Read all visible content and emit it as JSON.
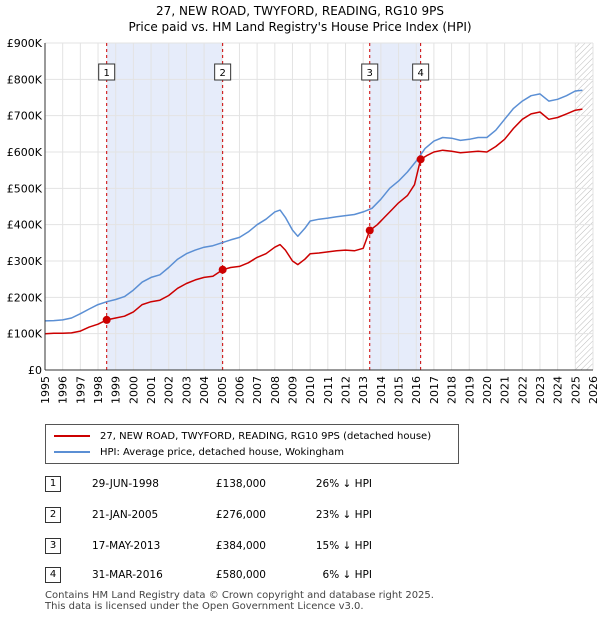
{
  "title": {
    "line1": "27, NEW ROAD, TWYFORD, READING, RG10 9PS",
    "line2": "Price paid vs. HM Land Registry's House Price Index (HPI)"
  },
  "colors": {
    "property": "#cc0000",
    "hpi": "#5b8fd4",
    "shade": "#e6ecfa",
    "marker_line": "#cc0000"
  },
  "legend": {
    "property_label": "27, NEW ROAD, TWYFORD, READING, RG10 9PS (detached house)",
    "hpi_label": "HPI: Average price, detached house, Wokingham"
  },
  "sales": [
    {
      "num": "1",
      "date": "29-JUN-1998",
      "price": "£138,000",
      "hpi": "26% ↓ HPI"
    },
    {
      "num": "2",
      "date": "21-JAN-2005",
      "price": "£276,000",
      "hpi": "23% ↓ HPI"
    },
    {
      "num": "3",
      "date": "17-MAY-2013",
      "price": "£384,000",
      "hpi": "15% ↓ HPI"
    },
    {
      "num": "4",
      "date": "31-MAR-2016",
      "price": "£580,000",
      "hpi": "6% ↓ HPI"
    }
  ],
  "footer": {
    "line1": "Contains HM Land Registry data © Crown copyright and database right 2025.",
    "line2": "This data is licensed under the Open Government Licence v3.0."
  },
  "chart_data": {
    "type": "line",
    "title": "Price paid vs. HM Land Registry's House Price Index (HPI)",
    "xlabel": "",
    "ylabel": "",
    "xlim": [
      1995,
      2026
    ],
    "ylim": [
      0,
      900000
    ],
    "x_ticks": [
      1995,
      1996,
      1997,
      1998,
      1999,
      2000,
      2001,
      2002,
      2003,
      2004,
      2005,
      2006,
      2007,
      2008,
      2009,
      2010,
      2011,
      2012,
      2013,
      2014,
      2015,
      2016,
      2017,
      2018,
      2019,
      2020,
      2021,
      2022,
      2023,
      2024,
      2025,
      2026
    ],
    "y_ticks": [
      {
        "value": 0,
        "label": "£0"
      },
      {
        "value": 100000,
        "label": "£100K"
      },
      {
        "value": 200000,
        "label": "£200K"
      },
      {
        "value": 300000,
        "label": "£300K"
      },
      {
        "value": 400000,
        "label": "£400K"
      },
      {
        "value": 500000,
        "label": "£500K"
      },
      {
        "value": 600000,
        "label": "£600K"
      },
      {
        "value": 700000,
        "label": "£700K"
      },
      {
        "value": 800000,
        "label": "£800K"
      },
      {
        "value": 900000,
        "label": "£900K"
      }
    ],
    "shaded_ranges": [
      [
        1998.49,
        2005.05
      ],
      [
        2013.37,
        2016.25
      ]
    ],
    "future_hatch_from": 2025.0,
    "sale_markers": [
      {
        "label": "1",
        "x": 1998.49,
        "y": 138000
      },
      {
        "label": "2",
        "x": 2005.05,
        "y": 276000
      },
      {
        "label": "3",
        "x": 2013.37,
        "y": 384000
      },
      {
        "label": "4",
        "x": 2016.25,
        "y": 580000
      }
    ],
    "series": [
      {
        "name": "27, NEW ROAD, TWYFORD, READING, RG10 9PS (detached house)",
        "color": "#cc0000",
        "points": [
          [
            1995.0,
            100000
          ],
          [
            1995.5,
            101000
          ],
          [
            1996.0,
            101000
          ],
          [
            1996.5,
            102000
          ],
          [
            1997.0,
            107000
          ],
          [
            1997.5,
            118000
          ],
          [
            1998.0,
            126000
          ],
          [
            1998.49,
            138000
          ],
          [
            1999.0,
            143000
          ],
          [
            1999.5,
            148000
          ],
          [
            2000.0,
            160000
          ],
          [
            2000.5,
            180000
          ],
          [
            2001.0,
            188000
          ],
          [
            2001.5,
            192000
          ],
          [
            2002.0,
            205000
          ],
          [
            2002.5,
            225000
          ],
          [
            2003.0,
            238000
          ],
          [
            2003.5,
            248000
          ],
          [
            2004.0,
            255000
          ],
          [
            2004.5,
            258000
          ],
          [
            2005.05,
            276000
          ],
          [
            2005.5,
            282000
          ],
          [
            2006.0,
            285000
          ],
          [
            2006.5,
            295000
          ],
          [
            2007.0,
            310000
          ],
          [
            2007.5,
            320000
          ],
          [
            2008.0,
            338000
          ],
          [
            2008.3,
            345000
          ],
          [
            2008.6,
            330000
          ],
          [
            2009.0,
            300000
          ],
          [
            2009.3,
            290000
          ],
          [
            2009.7,
            305000
          ],
          [
            2010.0,
            320000
          ],
          [
            2010.5,
            322000
          ],
          [
            2011.0,
            325000
          ],
          [
            2011.5,
            328000
          ],
          [
            2012.0,
            330000
          ],
          [
            2012.5,
            328000
          ],
          [
            2013.0,
            335000
          ],
          [
            2013.37,
            384000
          ],
          [
            2013.8,
            400000
          ],
          [
            2014.2,
            420000
          ],
          [
            2014.6,
            440000
          ],
          [
            2015.0,
            460000
          ],
          [
            2015.5,
            480000
          ],
          [
            2015.9,
            510000
          ],
          [
            2016.25,
            580000
          ],
          [
            2016.6,
            590000
          ],
          [
            2017.0,
            600000
          ],
          [
            2017.5,
            605000
          ],
          [
            2018.0,
            602000
          ],
          [
            2018.5,
            598000
          ],
          [
            2019.0,
            600000
          ],
          [
            2019.5,
            602000
          ],
          [
            2020.0,
            600000
          ],
          [
            2020.5,
            615000
          ],
          [
            2021.0,
            635000
          ],
          [
            2021.5,
            665000
          ],
          [
            2022.0,
            690000
          ],
          [
            2022.5,
            705000
          ],
          [
            2023.0,
            710000
          ],
          [
            2023.5,
            690000
          ],
          [
            2024.0,
            695000
          ],
          [
            2024.5,
            705000
          ],
          [
            2025.0,
            715000
          ],
          [
            2025.4,
            718000
          ]
        ]
      },
      {
        "name": "HPI: Average price, detached house, Wokingham",
        "color": "#5b8fd4",
        "points": [
          [
            1995.0,
            135000
          ],
          [
            1995.5,
            136000
          ],
          [
            1996.0,
            138000
          ],
          [
            1996.5,
            143000
          ],
          [
            1997.0,
            155000
          ],
          [
            1997.5,
            168000
          ],
          [
            1998.0,
            180000
          ],
          [
            1998.5,
            188000
          ],
          [
            1999.0,
            194000
          ],
          [
            1999.5,
            202000
          ],
          [
            2000.0,
            220000
          ],
          [
            2000.5,
            242000
          ],
          [
            2001.0,
            255000
          ],
          [
            2001.5,
            262000
          ],
          [
            2002.0,
            282000
          ],
          [
            2002.5,
            305000
          ],
          [
            2003.0,
            320000
          ],
          [
            2003.5,
            330000
          ],
          [
            2004.0,
            338000
          ],
          [
            2004.5,
            342000
          ],
          [
            2005.0,
            350000
          ],
          [
            2005.5,
            358000
          ],
          [
            2006.0,
            365000
          ],
          [
            2006.5,
            380000
          ],
          [
            2007.0,
            400000
          ],
          [
            2007.5,
            415000
          ],
          [
            2008.0,
            435000
          ],
          [
            2008.3,
            440000
          ],
          [
            2008.6,
            420000
          ],
          [
            2009.0,
            385000
          ],
          [
            2009.3,
            368000
          ],
          [
            2009.7,
            390000
          ],
          [
            2010.0,
            410000
          ],
          [
            2010.5,
            415000
          ],
          [
            2011.0,
            418000
          ],
          [
            2011.5,
            422000
          ],
          [
            2012.0,
            425000
          ],
          [
            2012.5,
            428000
          ],
          [
            2013.0,
            435000
          ],
          [
            2013.5,
            445000
          ],
          [
            2014.0,
            470000
          ],
          [
            2014.5,
            500000
          ],
          [
            2015.0,
            520000
          ],
          [
            2015.5,
            545000
          ],
          [
            2016.0,
            575000
          ],
          [
            2016.5,
            610000
          ],
          [
            2017.0,
            630000
          ],
          [
            2017.5,
            640000
          ],
          [
            2018.0,
            638000
          ],
          [
            2018.5,
            632000
          ],
          [
            2019.0,
            635000
          ],
          [
            2019.5,
            640000
          ],
          [
            2020.0,
            640000
          ],
          [
            2020.5,
            660000
          ],
          [
            2021.0,
            690000
          ],
          [
            2021.5,
            720000
          ],
          [
            2022.0,
            740000
          ],
          [
            2022.5,
            755000
          ],
          [
            2023.0,
            760000
          ],
          [
            2023.5,
            740000
          ],
          [
            2024.0,
            745000
          ],
          [
            2024.5,
            755000
          ],
          [
            2025.0,
            768000
          ],
          [
            2025.4,
            770000
          ]
        ]
      }
    ]
  }
}
